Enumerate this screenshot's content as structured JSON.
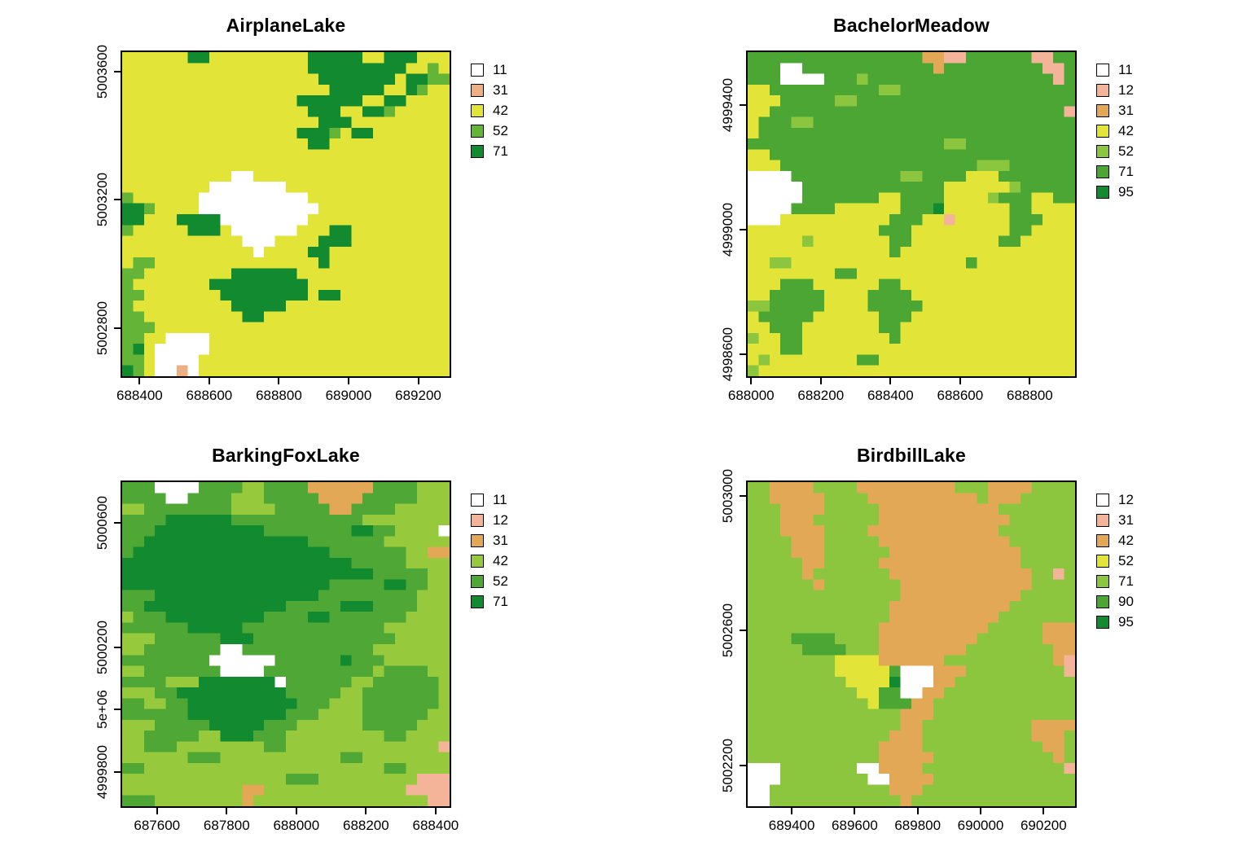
{
  "figure": {
    "background": "#FFFFFF",
    "layout": "2x2",
    "text_color": "#000000"
  },
  "chart_data": [
    {
      "type": "heatmap",
      "title": "AirplaneLake",
      "xlabel": "",
      "ylabel": "",
      "xlim": [
        688350,
        689290
      ],
      "ylim": [
        5002650,
        5003660
      ],
      "xticks": [
        {
          "value": 688400,
          "label": "688400"
        },
        {
          "value": 688600,
          "label": "688600"
        },
        {
          "value": 688800,
          "label": "688800"
        },
        {
          "value": 689000,
          "label": "689000"
        },
        {
          "value": 689200,
          "label": "689200"
        }
      ],
      "yticks": [
        {
          "value": 5002800,
          "label": "5002800"
        },
        {
          "value": 5003200,
          "label": "5003200"
        },
        {
          "value": 5003600,
          "label": "5003600"
        }
      ],
      "legend": [
        {
          "code": "11",
          "char": "W",
          "color": "#FFFFFF"
        },
        {
          "code": "31",
          "char": "S",
          "color": "#EFAF85"
        },
        {
          "code": "42",
          "char": "Y",
          "color": "#E2E437"
        },
        {
          "code": "52",
          "char": "L",
          "color": "#63B437"
        },
        {
          "code": "71",
          "char": "D",
          "color": "#128A30"
        }
      ],
      "grid": [
        "YYYYYYDDYYYYYYYYYDDDDDYYDDDYYY",
        "YYYYYYYYYYYYYYYYYDDDDDDDDDYYLY",
        "YYYYYYYYYYYYYYYYYYDDDDDDDYDDLL",
        "YYYYYYYYYYYYYYYYYYYDDDDDYYDLYY",
        "YYYYYYYYYYYYYYYYDDDDDDYYDDYYYY",
        "YYYYYYYYYYYYYYYYYDDDYYDDLYYYYY",
        "YYYYYYYYYYYYYYYYYYDDDYYYYYYYYY",
        "YYYYYYYYYYYYYYYYDDDLYDDYYYYYYY",
        "YYYYYYYYYYYYYYYYYDDYYYYYYYYYYY",
        "YYYYYYYYYYYYYYYYYYYYYYYYYYYYYY",
        "YYYYYYYYYYYYYYYYYYYYYYYYYYYYYY",
        "YYYYYYYYYYWWYYYYYYYYYYYYYYYYYY",
        "YYYYYYYYWWWWWWWYYYYYYYYYYYYYYY",
        "LYYYYYYWWWWWWWWWWYYYYYYYYYYYYY",
        "DDLYYYYWWWWWWWWWWWYYYYYYYYYYYY",
        "DDYYYDDDDWWWWWWWWYYYYYYYYYYYYY",
        "LYYYYYDDDYWWWWWWYYYDDYYYYYYYYY",
        "YYYYYYYYYYYWWWYYYYDDDYYYYYYYYY",
        "YYYYYYYYYYYYWYYYYDDYYYYYYYYYYY",
        "YLLYYYYYYYYYYYYYYYDYYYYYYYYYYY",
        "LLYYYYYYYYDDDDDDYYYYYYYYYYYYYY",
        "LYYYYYYYDDDDDDDDDYYYYYYYYYYYYY",
        "LLYYYYYYYDDDDDDDDYDDYYYYYYYYYY",
        "LYYYYYYYYYDDDDDYYYYYYYYYYYYYYY",
        "LLYYYYYYYYYDDYYYYYYYYYYYYYYYYY",
        "LLLYYYYYYYYYYYYYYYYYYYYYYYYYYY",
        "LLYYWWWWYYYYYYYYYYYYYYYYYYYYYY",
        "LDYWWWWWYYYYYYYYYYYYYYYYYYYYYY",
        "LLYWWWWYYYYYYYYYYYYYYYYYYYYYYY",
        "DLYWWSWYYYYYYYYYYYYYYYYYYYYYYY"
      ]
    },
    {
      "type": "heatmap",
      "title": "BachelorMeadow",
      "xlabel": "",
      "ylabel": "",
      "xlim": [
        687990,
        688930
      ],
      "ylim": [
        4998530,
        4999570
      ],
      "xticks": [
        {
          "value": 688000,
          "label": "688000"
        },
        {
          "value": 688200,
          "label": "688200"
        },
        {
          "value": 688400,
          "label": "688400"
        },
        {
          "value": 688600,
          "label": "688600"
        },
        {
          "value": 688800,
          "label": "688800"
        }
      ],
      "yticks": [
        {
          "value": 4998600,
          "label": "4998600"
        },
        {
          "value": 4999000,
          "label": "4999000"
        },
        {
          "value": 4999400,
          "label": "4999400"
        }
      ],
      "legend": [
        {
          "code": "11",
          "char": "W",
          "color": "#FFFFFF"
        },
        {
          "code": "12",
          "char": "P",
          "color": "#F3B49A"
        },
        {
          "code": "31",
          "char": "O",
          "color": "#E2A855"
        },
        {
          "code": "42",
          "char": "Y",
          "color": "#E2E437"
        },
        {
          "code": "52",
          "char": "L",
          "color": "#8CC63F"
        },
        {
          "code": "71",
          "char": "G",
          "color": "#4BA634"
        },
        {
          "code": "95",
          "char": "D",
          "color": "#128A30"
        }
      ],
      "grid": [
        "GGGGGGGGGGGGGGGGOOPPGGGGGGPPGG",
        "GGGWWGGGGGGGGGGGGOGGGGGGGGGPPG",
        "GGGWWWWGGGLGGGGGGGGGGGGGGGGGPG",
        "YYGGGGGGGGGGLLGGGGGGGGGGGGGGGG",
        "YYYGGGGGLLGGGGGGGGGGGGGGGGGGGG",
        "YYGGGGGGGGGGGGGGGGGGGGGGGGGGGP",
        "YGGGLLGGGGGGGGGGGGGGGGGGGGGGGG",
        "YGGGGGGGGGGGGGGGGGGGGGGGGGGGGG",
        "GGGGGGGGGGGGGGGGGGLLGGGGGGGGGG",
        "YYGGGGGGGGGGGGGGGGGGGGGGGGGGGG",
        "YYYGGGGGGGGGGGGGGGGGGLLLGGGGGG",
        "WWWWGGGGGGGGGGLLGGGGYYYGGGGGGG",
        "WWWWWGGGGGGGGGGGGGYYYYYYLGGGGG",
        "WWWWWGGGGGGGYYGGGGYYYYLGGGYYGG",
        "WWWWGGGGYYYYYYGGGDYYYYYYGGYYYY",
        "WWWYYYYYYYYYYGGGYYPYYYYYGGGYYY",
        "YYYYYYYYYYYYGGGYYYYYYYYYGGYYYY",
        "YYYYYLYYYYYYYGGYYYYYYYYGGYYYYY",
        "YYYYYYYYYYYYYGYYYYYYYYYYYYYYYY",
        "YYLLYYYYYYYYYYYYYYYYGYYYYYYYYY",
        "YYYYYYYYGGYYYYYYYYYYYYYYYYYYYY",
        "YYYGGGYYYYYYGGYYYYYYYYYYYYYYYY",
        "YYGGGGGYYYYGGGGYYYYYYYYYYYYYYY",
        "LLGGGGGYYYYGGGGGYYYYYYYYYYYYYY",
        "YGGGGGYYYYYYGGGYYYYYYYYYYYYYYY",
        "YYGGGYYYYYYYGGYYYYYYYYYYYYYYYY",
        "LYYGGYYYYYYYYGYYYYYYYYYYYYYYYY",
        "YYYGGYYYYYYYYYYYYYYYYYYYYYYYYY",
        "YLYYYYYYYYGGYYYYYYYYYYYYYYYYYY",
        "LYYYYYYYYYYYYYYYYYYYYYYYYYYYYY"
      ]
    },
    {
      "type": "heatmap",
      "title": "BarkingFoxLake",
      "xlabel": "",
      "ylabel": "",
      "xlim": [
        687500,
        688440
      ],
      "ylim": [
        4999690,
        5000730
      ],
      "xticks": [
        {
          "value": 687600,
          "label": "687600"
        },
        {
          "value": 687800,
          "label": "687800"
        },
        {
          "value": 688000,
          "label": "688000"
        },
        {
          "value": 688200,
          "label": "688200"
        },
        {
          "value": 688400,
          "label": "688400"
        }
      ],
      "yticks": [
        {
          "value": 4999800,
          "label": "4999800"
        },
        {
          "value": 5000000,
          "label": "5e+06"
        },
        {
          "value": 5000200,
          "label": "5000200"
        },
        {
          "value": 5000600,
          "label": "5000600"
        }
      ],
      "legend": [
        {
          "code": "11",
          "char": "W",
          "color": "#FFFFFF"
        },
        {
          "code": "12",
          "char": "P",
          "color": "#F3B49A"
        },
        {
          "code": "31",
          "char": "O",
          "color": "#E2A855"
        },
        {
          "code": "42",
          "char": "L",
          "color": "#97C93C"
        },
        {
          "code": "52",
          "char": "G",
          "color": "#4FA835"
        },
        {
          "code": "71",
          "char": "D",
          "color": "#128A30"
        }
      ],
      "grid": [
        "GGGWWWWGGGGLLGGGGOOOOOOGGGGLLL",
        "GGGGWWGGGGLLLGGGGGOOOOGGGGGLLL",
        "LLGGGGGGGGLLLLGGGGGOOGGGGLLLLL",
        "GGGGDDDDDDGGGGGGGGGGGGLLLLLLLL",
        "GGGDDDDDDDDDDGGGGGGGGDDGGLLLLW",
        "GGDDDDDDDDDDDDDDDGGGGGGGLLLLLL",
        "GDDDDDDDDDDDDDDDDDDGGGGGGGLLOO",
        "DDDDDDDDDDDDDDDDDDDDDGGGGGLLLL",
        "DDDDDDDDDDDDDDDDDDDDDDDGGGGGLL",
        "DDDDDDDDDDDDDDDDDDDGGGGGDDGGLL",
        "GGGDDDDDDDDDDDDDDDGGGGGGGGGLLL",
        "GGDDDDDDDDDDDDDGGGGGDDDGGGGLLL",
        "LGGGDDDDDDDDDGGGGDDGGGGGGGLLLL",
        "GGGGGGDDDDDGGGGGGGGGGGGGLLLLLL",
        "LLLGGGGGGDDDGGGGGGGGGGGGGLLLLL",
        "LLGGGGGGGWWGGGGGGGGGGGGLLLLLLL",
        "GGGGGGGGWWWWWWGGGGGGDGGGLLLLLL",
        "LLGGGGGGGWWWWGGGGGGGGGGLGGGGLL",
        "GGGGLLLDDDDDDDWGGGGGGLLGGGGGGL",
        "LLLGGDDDDDDDDDDGGGGGLLGGGGGGGL",
        "GGLLGGDDDDDDDDDDGGGLLLGGGGGGGL",
        "GGGGGGDDDDDDDDDGGGLLLLGGGGGGLL",
        "LLLGGGGGDDDDDGGGLLLLLLGGGGGLLL",
        "LLGGGGGLLDDDGGGLLLLLLLLLGGLLLL",
        "LLGGGLLLLLLLLGGLLLLLLLLLLLLLLP",
        "LLLLLLGGGLLLLLLLLLLLGGLLLLLLLL",
        "GGLLLLLLLLLLLLLLLLLLLLLLGGLLLL",
        "LLLLLLLLLLLLLLLGGGLLLLLLLLLPPP",
        "LLLLLLLLLLLOOLLLLLLLLLLLLLPPPP",
        "GGGLLLLLLLLOLLLLLLLLLLLLLLLLPP"
      ]
    },
    {
      "type": "heatmap",
      "title": "BirdbillLake",
      "xlabel": "",
      "ylabel": "",
      "xlim": [
        689260,
        690300
      ],
      "ylim": [
        5002080,
        5003040
      ],
      "xticks": [
        {
          "value": 689400,
          "label": "689400"
        },
        {
          "value": 689600,
          "label": "689600"
        },
        {
          "value": 689800,
          "label": "689800"
        },
        {
          "value": 690000,
          "label": "690000"
        },
        {
          "value": 690200,
          "label": "690200"
        }
      ],
      "yticks": [
        {
          "value": 5002200,
          "label": "5002200"
        },
        {
          "value": 5002600,
          "label": "5002600"
        },
        {
          "value": 5003000,
          "label": "5003000"
        }
      ],
      "legend": [
        {
          "code": "12",
          "char": "W",
          "color": "#FFFFFF"
        },
        {
          "code": "31",
          "char": "P",
          "color": "#F3B49A"
        },
        {
          "code": "42",
          "char": "O",
          "color": "#E2A855"
        },
        {
          "code": "52",
          "char": "Y",
          "color": "#E2E437"
        },
        {
          "code": "71",
          "char": "L",
          "color": "#8CC63F"
        },
        {
          "code": "90",
          "char": "G",
          "color": "#4BA634"
        },
        {
          "code": "95",
          "char": "D",
          "color": "#128A30"
        }
      ],
      "grid": [
        "LLOOOOLLLLOOOOOOOOOLLLOOOOLLLL",
        "LLOOOOOLLLLOOOOOOOOOOLOOOLLLLL",
        "LLLOOOOLLLLLOOOOOOOOOOOLLLLLLL",
        "LLLOOOLLLLLLOOOOOOOOOOOOLLLLLL",
        "LLLOOOOLLLLOOOOOOOOOOOOLLLLLLL",
        "LLLLOOOLLLLLOOOOOOOOOOOOLLLLLL",
        "LLLLOOOLLLLLLOOOOOOOOOOOOLLLLL",
        "LLLLLOOLLLLLOOOOOOOOOOOOOLLLLL",
        "LLLLLOLLLLLLLOOOOOOOOOOOOOLLPL",
        "LLLLLLOLLLLLLLOOOOOOOOOOOOLLLL",
        "LLLLLLLLLLLLLLOOOOOOOOOOOLLLLL",
        "LLLLLLLLLLLLLOOOOOOOOOOOLLLLLL",
        "LLLLLLLLLLLLLOOOOOOOOOOLLLLLLL",
        "LLLLLLLLLLLLOOOOOOOOOOLLLLLOOO",
        "LLLLGGGGLLLLOOOOOOOOOLLLLLLOOO",
        "LLLLLGGGGLLLOOOOOOOOLLLLLLLLOO",
        "LLLLLLLLYYYYOOOOOOLLLLLLLLLLOP",
        "LLLLLLLLYYYYYGWWWOOOLLLLLLLLLP",
        "LLLLLLLLLYYYYDWWWOOLLLLLLLLLLL",
        "LLLLLLLLLLYYGGWWOOLLLLLLLLLLLL",
        "LLLLLLLLLLLYGGGOOLLLLLLLLLLLLL",
        "LLLLLLLLLLLLLLOOOLLLLLLLLLLLLL",
        "LLLLLLLLLLLLLLOOLLLLLLLLLLOOOO",
        "LLLLLLLLLLLLLOOOLLLLLLLLLLOOOL",
        "LLLLLLLLLLLLOOOOLLLLLLLLLLLOOL",
        "LLLLLLLLLLLLOOOOOLLLLLLLLLLLOL",
        "WWWLLLLLLLWWOOOOLLLLLLLLLLLLLP",
        "WWWLLLLLLLLWWOOOOLLLLLLLLLLLLL",
        "WWLLLLLLLLLLLOOOLLLLLLLLLLLLLL",
        "WWLLLLLLLLLLLLOLLLLLLLLLLLLLLL"
      ]
    }
  ]
}
